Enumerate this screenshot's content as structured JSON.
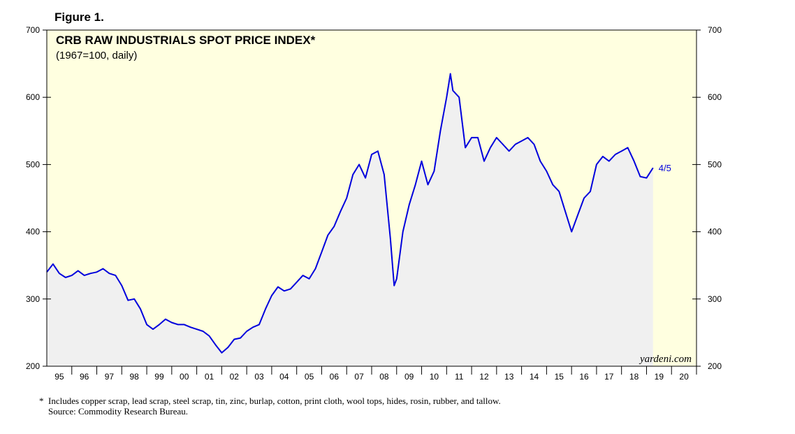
{
  "figure_label": "Figure 1.",
  "chart_data": {
    "type": "area-line",
    "title": "CRB RAW INDUSTRIALS SPOT PRICE INDEX*",
    "subtitle": "(1967=100, daily)",
    "end_label": "4/5",
    "watermark": "yardeni.com",
    "color": "#0000dd",
    "fill_color": "#f0f0f0",
    "background": "#ffffe0",
    "x": [
      1995.0,
      1995.25,
      1995.5,
      1995.75,
      1996.0,
      1996.25,
      1996.5,
      1996.75,
      1997.0,
      1997.25,
      1997.5,
      1997.75,
      1998.0,
      1998.25,
      1998.5,
      1998.75,
      1999.0,
      1999.25,
      1999.5,
      1999.75,
      2000.0,
      2000.25,
      2000.5,
      2000.75,
      2001.0,
      2001.25,
      2001.5,
      2001.75,
      2002.0,
      2002.25,
      2002.5,
      2002.75,
      2003.0,
      2003.25,
      2003.5,
      2003.75,
      2004.0,
      2004.25,
      2004.5,
      2004.75,
      2005.0,
      2005.25,
      2005.5,
      2005.75,
      2006.0,
      2006.25,
      2006.5,
      2006.75,
      2007.0,
      2007.25,
      2007.5,
      2007.75,
      2008.0,
      2008.25,
      2008.5,
      2008.75,
      2008.9,
      2009.0,
      2009.25,
      2009.5,
      2009.75,
      2010.0,
      2010.25,
      2010.5,
      2010.75,
      2011.0,
      2011.15,
      2011.25,
      2011.5,
      2011.75,
      2012.0,
      2012.25,
      2012.5,
      2012.75,
      2013.0,
      2013.25,
      2013.5,
      2013.75,
      2014.0,
      2014.25,
      2014.5,
      2014.75,
      2015.0,
      2015.25,
      2015.5,
      2015.75,
      2016.0,
      2016.25,
      2016.5,
      2016.75,
      2017.0,
      2017.25,
      2017.5,
      2017.75,
      2018.0,
      2018.25,
      2018.5,
      2018.75,
      2019.0,
      2019.26
    ],
    "values": [
      340,
      352,
      338,
      332,
      335,
      342,
      335,
      338,
      340,
      345,
      338,
      335,
      320,
      298,
      300,
      285,
      262,
      255,
      262,
      270,
      265,
      262,
      262,
      258,
      255,
      252,
      245,
      232,
      220,
      228,
      240,
      242,
      252,
      258,
      262,
      285,
      305,
      318,
      312,
      315,
      325,
      335,
      330,
      345,
      370,
      395,
      408,
      430,
      450,
      485,
      500,
      480,
      515,
      520,
      485,
      390,
      320,
      330,
      400,
      440,
      470,
      505,
      470,
      490,
      550,
      600,
      635,
      610,
      600,
      525,
      540,
      540,
      505,
      525,
      540,
      530,
      520,
      530,
      535,
      540,
      530,
      505,
      490,
      470,
      460,
      430,
      400,
      425,
      450,
      460,
      500,
      512,
      505,
      515,
      520,
      525,
      505,
      482,
      480,
      495
    ],
    "xlim": [
      1995,
      2021
    ],
    "xticks": [
      {
        "value": 1995.5,
        "label": "95"
      },
      {
        "value": 1996.5,
        "label": "96"
      },
      {
        "value": 1997.5,
        "label": "97"
      },
      {
        "value": 1998.5,
        "label": "98"
      },
      {
        "value": 1999.5,
        "label": "99"
      },
      {
        "value": 2000.5,
        "label": "00"
      },
      {
        "value": 2001.5,
        "label": "01"
      },
      {
        "value": 2002.5,
        "label": "02"
      },
      {
        "value": 2003.5,
        "label": "03"
      },
      {
        "value": 2004.5,
        "label": "04"
      },
      {
        "value": 2005.5,
        "label": "05"
      },
      {
        "value": 2006.5,
        "label": "06"
      },
      {
        "value": 2007.5,
        "label": "07"
      },
      {
        "value": 2008.5,
        "label": "08"
      },
      {
        "value": 2009.5,
        "label": "09"
      },
      {
        "value": 2010.5,
        "label": "10"
      },
      {
        "value": 2011.5,
        "label": "11"
      },
      {
        "value": 2012.5,
        "label": "12"
      },
      {
        "value": 2013.5,
        "label": "13"
      },
      {
        "value": 2014.5,
        "label": "14"
      },
      {
        "value": 2015.5,
        "label": "15"
      },
      {
        "value": 2016.5,
        "label": "16"
      },
      {
        "value": 2017.5,
        "label": "17"
      },
      {
        "value": 2018.5,
        "label": "18"
      },
      {
        "value": 2019.5,
        "label": "19"
      },
      {
        "value": 2020.5,
        "label": "20"
      }
    ],
    "ylim": [
      200,
      700
    ],
    "yticks": [
      200,
      300,
      400,
      500,
      600,
      700
    ],
    "y2lim": [
      200,
      700
    ],
    "y2ticks": [
      200,
      300,
      400,
      500,
      600,
      700
    ]
  },
  "footnote": {
    "marker": "*",
    "text": "Includes copper scrap, lead scrap, steel scrap, tin, zinc, burlap, cotton, print cloth, wool tops, hides, rosin, rubber, and tallow.",
    "source": "Source: Commodity Research Bureau."
  }
}
